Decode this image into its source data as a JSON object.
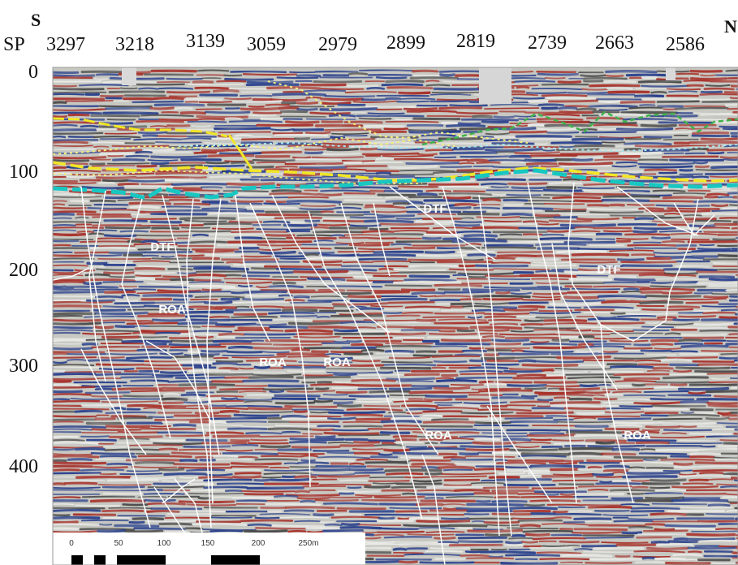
{
  "directions": {
    "left": "S",
    "right": "N"
  },
  "shotpoint_axis": {
    "prefix": "SP",
    "values": [
      "3297",
      "3218",
      "3139",
      "3059",
      "2979",
      "2899",
      "2819",
      "2739",
      "2663",
      "2586"
    ]
  },
  "depth_axis": {
    "values": [
      "0",
      "100",
      "200",
      "300",
      "400"
    ]
  },
  "unit_labels": [
    "DTF",
    "DTF",
    "DTF",
    "ROA",
    "ROA",
    "ROA",
    "ROA",
    "ROA"
  ],
  "scale_bar": {
    "ticks": [
      "0",
      "50",
      "100",
      "150",
      "200",
      "250m"
    ]
  },
  "colors": {
    "horizon_top": "#f2e626",
    "horizon_base": "#19c7c2",
    "horizon_green": "#3fb24a",
    "faults": "#ffffff",
    "trace_red": "#a8322b",
    "trace_blue": "#283f8c"
  }
}
